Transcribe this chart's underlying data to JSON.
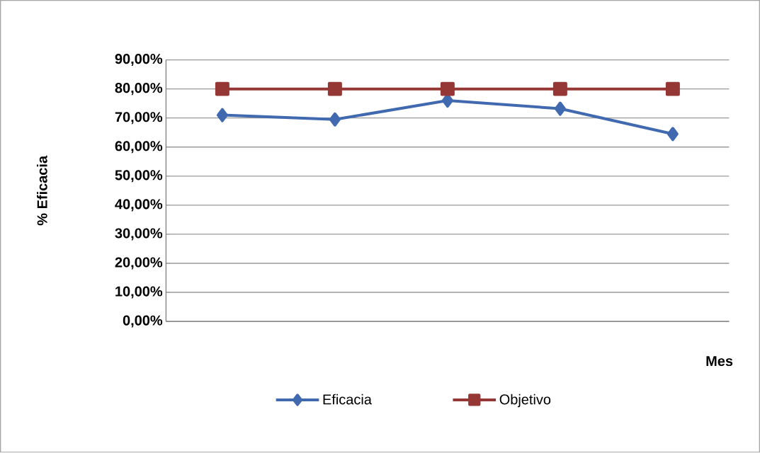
{
  "chart_data": {
    "type": "line",
    "ylabel": "% Eficacia",
    "xlabel": "Mes",
    "categories": [
      null,
      null,
      null,
      null,
      null
    ],
    "series": [
      {
        "name": "Eficacia",
        "color": "#4169b0",
        "marker": "diamond",
        "values": [
          71.0,
          69.5,
          76.0,
          73.2,
          64.5
        ]
      },
      {
        "name": "Objetivo",
        "color": "#953735",
        "marker": "square",
        "values": [
          80,
          80,
          80,
          80,
          80
        ]
      }
    ],
    "ylim": [
      0,
      90
    ],
    "yticks": [
      {
        "value": 0,
        "label": "0,00%"
      },
      {
        "value": 10,
        "label": "10,00%"
      },
      {
        "value": 20,
        "label": "20,00%"
      },
      {
        "value": 30,
        "label": "30,00%"
      },
      {
        "value": 40,
        "label": "40,00%"
      },
      {
        "value": 50,
        "label": "50,00%"
      },
      {
        "value": 60,
        "label": "60,00%"
      },
      {
        "value": 70,
        "label": "70,00%"
      },
      {
        "value": 80,
        "label": "80,00%"
      },
      {
        "value": 90,
        "label": "90,00%"
      }
    ],
    "grid": "y",
    "legend": "bottom",
    "tick_labels": "y",
    "line_style": "solid"
  }
}
